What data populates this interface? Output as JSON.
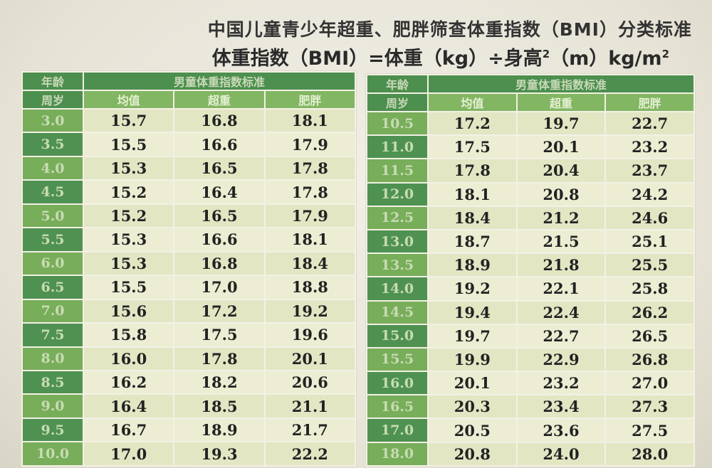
{
  "title_line1": "中国儿童青少年超重、肥胖筛查体重指数（BMI）分类标准",
  "formula": {
    "text": "体重指数（BMI）=体重（kg）÷身高",
    "exp": "2",
    "text2": "（m）kg/m",
    "exp2": "2"
  },
  "left_table": {
    "age_header_top": "年龄",
    "age_header_bottom": "周岁",
    "group_header": "男童体重指数标准",
    "col_headers": [
      "均值",
      "超重",
      "肥胖"
    ],
    "rows": [
      [
        "3.0",
        "15.7",
        "16.8",
        "18.1"
      ],
      [
        "3.5",
        "15.5",
        "16.6",
        "17.9"
      ],
      [
        "4.0",
        "15.3",
        "16.5",
        "17.8"
      ],
      [
        "4.5",
        "15.2",
        "16.4",
        "17.8"
      ],
      [
        "5.0",
        "15.2",
        "16.5",
        "17.9"
      ],
      [
        "5.5",
        "15.3",
        "16.6",
        "18.1"
      ],
      [
        "6.0",
        "15.3",
        "16.8",
        "18.4"
      ],
      [
        "6.5",
        "15.5",
        "17.0",
        "18.8"
      ],
      [
        "7.0",
        "15.6",
        "17.2",
        "19.2"
      ],
      [
        "7.5",
        "15.8",
        "17.5",
        "19.6"
      ],
      [
        "8.0",
        "16.0",
        "17.8",
        "20.1"
      ],
      [
        "8.5",
        "16.2",
        "18.2",
        "20.6"
      ],
      [
        "9.0",
        "16.4",
        "18.5",
        "21.1"
      ],
      [
        "9.5",
        "16.7",
        "18.9",
        "21.7"
      ],
      [
        "10.0",
        "17.0",
        "19.3",
        "22.2"
      ]
    ]
  },
  "right_table": {
    "age_header_top": "年龄",
    "age_header_bottom": "周岁",
    "group_header": "男童体重指数标准",
    "col_headers": [
      "均值",
      "超重",
      "肥胖"
    ],
    "rows": [
      [
        "10.5",
        "17.2",
        "19.7",
        "22.7"
      ],
      [
        "11.0",
        "17.5",
        "20.1",
        "23.2"
      ],
      [
        "11.5",
        "17.8",
        "20.4",
        "23.7"
      ],
      [
        "12.0",
        "18.1",
        "20.8",
        "24.2"
      ],
      [
        "12.5",
        "18.4",
        "21.2",
        "24.6"
      ],
      [
        "13.0",
        "18.7",
        "21.5",
        "25.1"
      ],
      [
        "13.5",
        "18.9",
        "21.8",
        "25.5"
      ],
      [
        "14.0",
        "19.2",
        "22.1",
        "25.8"
      ],
      [
        "14.5",
        "19.4",
        "22.4",
        "26.2"
      ],
      [
        "15.0",
        "19.7",
        "22.7",
        "26.5"
      ],
      [
        "15.5",
        "19.9",
        "22.9",
        "26.8"
      ],
      [
        "16.0",
        "20.1",
        "23.2",
        "27.0"
      ],
      [
        "16.5",
        "20.3",
        "23.4",
        "27.3"
      ],
      [
        "17.0",
        "20.5",
        "23.6",
        "27.5"
      ],
      [
        "18.0",
        "20.8",
        "24.0",
        "28.0"
      ]
    ]
  }
}
